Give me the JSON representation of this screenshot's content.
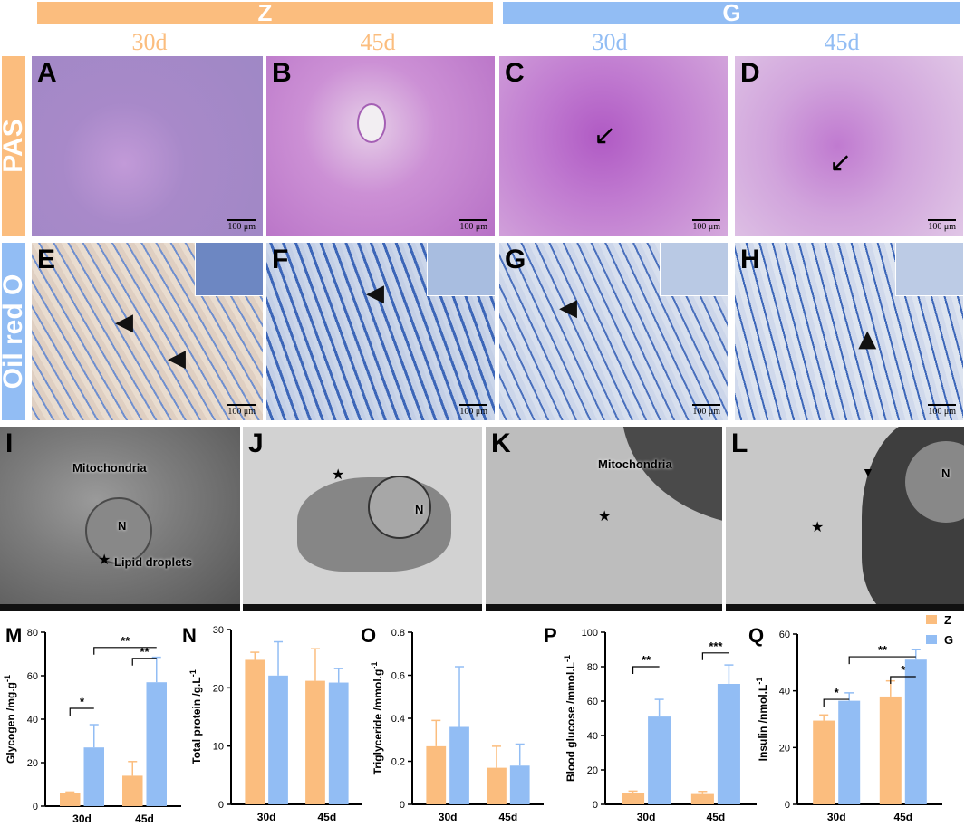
{
  "groups": [
    {
      "name": "Z",
      "color": "#fbbd7e"
    },
    {
      "name": "G",
      "color": "#92bdf4"
    }
  ],
  "days": [
    "30d",
    "45d",
    "30d",
    "45d"
  ],
  "row_labels": [
    "PAS",
    "Oil red O"
  ],
  "panel_letters": {
    "pas": [
      "A",
      "B",
      "C",
      "D"
    ],
    "oil": [
      "E",
      "F",
      "G",
      "H"
    ],
    "tem": [
      "I",
      "J",
      "K",
      "L"
    ]
  },
  "scale_bar": "100 μm",
  "tem_labels": {
    "mitochondria": "Mitochondria",
    "nucleus": "N",
    "lipid": "Lipid droplets"
  },
  "colors": {
    "z": "#fbbd7e",
    "g": "#92bdf4",
    "pas": "#b36cc1",
    "oil": "#3f6ec0"
  },
  "chart_data": [
    {
      "letter": "M",
      "type": "bar",
      "ylabel": "Glycogen /mg.g",
      "ylabel_sup": "-1",
      "categories": [
        "30d",
        "45d"
      ],
      "ylim": [
        0,
        80
      ],
      "yticks": [
        0,
        20,
        40,
        60,
        80
      ],
      "series": [
        {
          "name": "Z",
          "values": [
            6,
            14
          ],
          "errors": [
            0.5,
            6.5
          ]
        },
        {
          "name": "G",
          "values": [
            27,
            57
          ],
          "errors": [
            10.5,
            11.5
          ]
        }
      ],
      "significance": [
        "*",
        "**",
        "**"
      ]
    },
    {
      "letter": "N",
      "type": "bar",
      "ylabel": "Total protein /g.L",
      "ylabel_sup": "-1",
      "categories": [
        "30d",
        "45d"
      ],
      "ylim": [
        0,
        30
      ],
      "yticks": [
        0,
        10,
        20,
        30
      ],
      "series": [
        {
          "name": "Z",
          "values": [
            24.8,
            21.2
          ],
          "errors": [
            1.3,
            5.5
          ]
        },
        {
          "name": "G",
          "values": [
            22.1,
            20.9
          ],
          "errors": [
            5.8,
            2.4
          ]
        }
      ],
      "significance": []
    },
    {
      "letter": "O",
      "type": "bar",
      "ylabel": "Triglyceride /mmol.g",
      "ylabel_sup": "-1",
      "categories": [
        "30d",
        "45d"
      ],
      "ylim": [
        0,
        0.8
      ],
      "yticks": [
        0,
        0.2,
        0.4,
        0.6,
        0.8
      ],
      "ytick_labels": [
        "0",
        "0.2",
        "0.4",
        "0.6",
        "0.8"
      ],
      "series": [
        {
          "name": "Z",
          "values": [
            0.27,
            0.17
          ],
          "errors": [
            0.12,
            0.1
          ]
        },
        {
          "name": "G",
          "values": [
            0.36,
            0.18
          ],
          "errors": [
            0.28,
            0.1
          ]
        }
      ],
      "significance": []
    },
    {
      "letter": "P",
      "type": "bar",
      "ylabel": "Blood glucose /mmol.L",
      "ylabel_sup": "-1",
      "categories": [
        "30d",
        "45d"
      ],
      "ylim": [
        0,
        100
      ],
      "yticks": [
        0,
        20,
        40,
        60,
        80,
        100
      ],
      "series": [
        {
          "name": "Z",
          "values": [
            6.5,
            6
          ],
          "errors": [
            1.2,
            1.5
          ]
        },
        {
          "name": "G",
          "values": [
            51,
            70
          ],
          "errors": [
            10,
            11
          ]
        }
      ],
      "significance": [
        "**",
        "***"
      ]
    },
    {
      "letter": "Q",
      "type": "bar",
      "ylabel": "Insulin /nmol.L",
      "ylabel_sup": "-1",
      "categories": [
        "30d",
        "45d"
      ],
      "ylim": [
        0,
        60
      ],
      "yticks": [
        0,
        20,
        40,
        60
      ],
      "series": [
        {
          "name": "Z",
          "values": [
            29.5,
            38
          ],
          "errors": [
            2,
            5.5
          ]
        },
        {
          "name": "G",
          "values": [
            36.5,
            51
          ],
          "errors": [
            2.8,
            3.5
          ]
        }
      ],
      "significance": [
        "*",
        "**",
        "*"
      ],
      "legend": [
        "Z",
        "G"
      ],
      "legend_position": "top-right"
    }
  ]
}
